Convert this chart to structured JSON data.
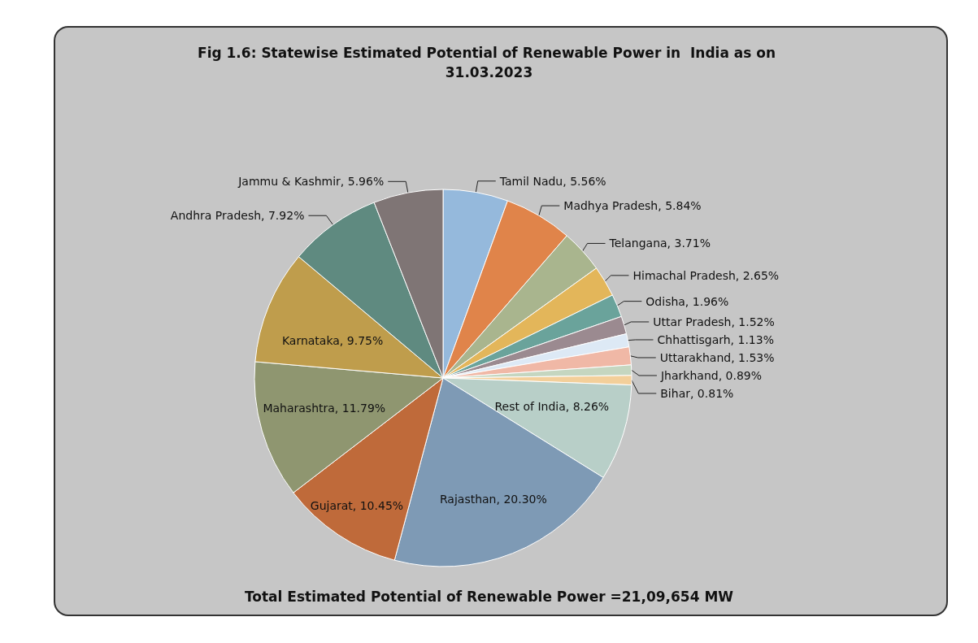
{
  "chart_data": {
    "type": "pie",
    "title": "Fig 1.6: Statewise Estimated Potential of Renewable Power in  India as on 31.03.2023",
    "categories": [
      "Tamil Nadu",
      "Madhya Pradesh",
      "Telangana",
      "Himachal Pradesh",
      "Odisha",
      "Uttar Pradesh",
      "Chhattisgarh",
      "Uttarakhand",
      "Jharkhand",
      "Bihar",
      "Rest of India",
      "Rajasthan",
      "Gujarat",
      "Maharashtra",
      "Karnataka",
      "Andhra Pradesh",
      "Jammu & Kashmir"
    ],
    "values": [
      5.56,
      5.84,
      3.71,
      2.65,
      1.96,
      1.52,
      1.13,
      1.53,
      0.89,
      0.81,
      8.26,
      20.3,
      10.45,
      11.79,
      9.75,
      7.92,
      5.96
    ],
    "value_labels": [
      "5.56%",
      "5.84%",
      "3.71%",
      "2.65%",
      "1.96%",
      "1.52%",
      "1.13%",
      "1.53%",
      "0.89%",
      "0.81%",
      "8.26%",
      "20.30%",
      "10.45%",
      "11.79%",
      "9.75%",
      "7.92%",
      "5.96%"
    ],
    "colors": [
      "#95b9dc",
      "#e0844a",
      "#a9b58e",
      "#e3b65a",
      "#6aa39b",
      "#9b8a90",
      "#dde9f5",
      "#f0b8a6",
      "#c5d6c0",
      "#f3cf9a",
      "#b8cfc8",
      "#7e9ab5",
      "#bf6a3a",
      "#8f9670",
      "#bf9d4c",
      "#5f8a80",
      "#7f7575"
    ],
    "annotations": [
      "Total Estimated Potential of Renewable Power =21,09,654 MW"
    ],
    "legend": false
  }
}
